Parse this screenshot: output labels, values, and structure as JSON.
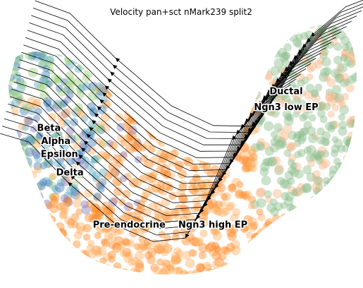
{
  "chart_data": {
    "type": "scatter",
    "title": "Velocity pan+sct nMark239 split2",
    "xlabel": "",
    "ylabel": "",
    "x_range": [
      0,
      100
    ],
    "y_range": [
      0,
      100
    ],
    "grid": false,
    "axes_visible": false,
    "legend": "on data",
    "overlay": "velocity streamlines with arrowheads",
    "series": [
      {
        "name": "Ductal",
        "color": "#8fbf8f"
      },
      {
        "name": "Ngn3 low EP",
        "color": "#f6b98a"
      },
      {
        "name": "Pre-endocrine",
        "color": "#ff8c2a"
      },
      {
        "name": "Ngn3 high EP",
        "color": "#ffb266"
      },
      {
        "name": "Beta",
        "color": "#4b82b8"
      },
      {
        "name": "Alpha",
        "color": "#9bd17c"
      },
      {
        "name": "Epsilon",
        "color": "#66b0c8"
      },
      {
        "name": "Delta",
        "color": "#8a7fbd"
      }
    ],
    "labels": [
      {
        "text": "Ductal",
        "x": 80,
        "y": 72
      },
      {
        "text": "Ngn3 low EP",
        "x": 80,
        "y": 66
      },
      {
        "text": "Beta",
        "x": 12,
        "y": 58
      },
      {
        "text": "Alpha",
        "x": 14,
        "y": 53
      },
      {
        "text": "Epsilon",
        "x": 15,
        "y": 48
      },
      {
        "text": "Delta",
        "x": 18,
        "y": 41
      },
      {
        "text": "Pre-endocrine",
        "x": 35,
        "y": 21
      },
      {
        "text": "Ngn3 high EP",
        "x": 59,
        "y": 21
      }
    ]
  }
}
